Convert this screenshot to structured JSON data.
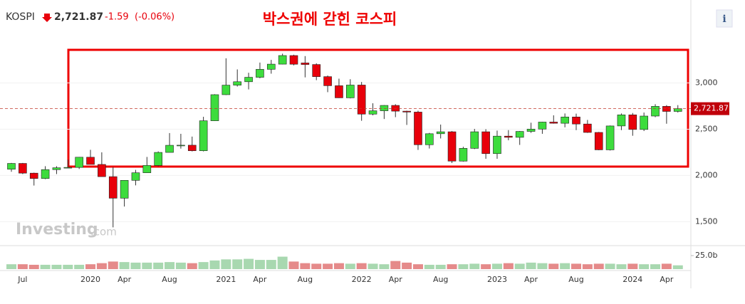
{
  "header": {
    "symbol": "KOSPI",
    "change": "-1.59",
    "change_pct": "(-0.06%)",
    "info_button": "i"
  },
  "chart_data": {
    "type": "candlestick",
    "title": "박스권에 갇힌 코스피",
    "categories": [
      null,
      "Jul",
      null,
      null,
      null,
      null,
      null,
      "2020",
      null,
      null,
      "Apr",
      null,
      null,
      null,
      "Aug",
      null,
      null,
      null,
      null,
      "2021",
      null,
      null,
      "Apr",
      null,
      null,
      null,
      "Aug",
      null,
      null,
      null,
      null,
      "2022",
      null,
      null,
      "Apr",
      null,
      null,
      null,
      "Aug",
      null,
      null,
      null,
      null,
      "2023",
      null,
      null,
      "Apr",
      null,
      null,
      null,
      "Aug",
      null,
      null,
      null,
      null,
      "2024",
      null,
      null,
      "Apr",
      null
    ],
    "open": [
      2067,
      2130,
      2025,
      1967,
      2063,
      2083,
      2087,
      2197,
      2119,
      1987,
      1754,
      1947,
      2029,
      2108,
      2249,
      2326,
      2327,
      2267,
      2591,
      2873,
      2976,
      3013,
      3061,
      3147,
      3203,
      3296,
      3216,
      3199,
      3068,
      2970,
      2839,
      2977,
      2663,
      2699,
      2757,
      2695,
      2685,
      2332,
      2451,
      2472,
      2155,
      2293,
      2472,
      2236,
      2425,
      2412,
      2476,
      2501,
      2577,
      2564,
      2632,
      2556,
      2465,
      2277,
      2535,
      2655,
      2497,
      2642,
      2747,
      2692
    ],
    "high": [
      2135,
      2135,
      2030,
      2100,
      2100,
      2170,
      2200,
      2277,
      2250,
      2090,
      1947,
      2060,
      2200,
      2260,
      2458,
      2450,
      2420,
      2634,
      2878,
      3266,
      3146,
      3110,
      3220,
      3249,
      3316,
      3305,
      3290,
      3212,
      3080,
      3046,
      3040,
      3010,
      2780,
      2760,
      2770,
      2700,
      2700,
      2460,
      2550,
      2480,
      2310,
      2503,
      2500,
      2485,
      2490,
      2480,
      2570,
      2580,
      2650,
      2670,
      2668,
      2600,
      2470,
      2540,
      2670,
      2675,
      2680,
      2770,
      2760,
      2760
    ],
    "low": [
      2040,
      2015,
      1891,
      1960,
      2015,
      2080,
      2070,
      2140,
      1987,
      1439,
      1664,
      1893,
      2030,
      2100,
      2250,
      2290,
      2260,
      2260,
      2590,
      2869,
      2961,
      2930,
      3050,
      3100,
      3200,
      3190,
      3060,
      3030,
      2900,
      2837,
      2833,
      2591,
      2650,
      2610,
      2630,
      2546,
      2276,
      2291,
      2400,
      2134,
      2150,
      2285,
      2180,
      2180,
      2380,
      2330,
      2460,
      2450,
      2560,
      2520,
      2490,
      2460,
      2273,
      2270,
      2490,
      2429,
      2480,
      2630,
      2559,
      2680
    ],
    "close": [
      2130,
      2025,
      1967,
      2063,
      2083,
      2087,
      2197,
      2119,
      1987,
      1754,
      1947,
      2029,
      2108,
      2249,
      2326,
      2327,
      2267,
      2591,
      2873,
      2976,
      3013,
      3061,
      3147,
      3203,
      3296,
      3202,
      3199,
      3068,
      2970,
      2839,
      2977,
      2663,
      2699,
      2757,
      2695,
      2685,
      2332,
      2451,
      2472,
      2155,
      2293,
      2472,
      2236,
      2425,
      2412,
      2476,
      2501,
      2577,
      2564,
      2632,
      2556,
      2465,
      2277,
      2535,
      2655,
      2497,
      2642,
      2747,
      2692,
      2722
    ],
    "up_color": "#3ddc3d",
    "down_color": "#e8000b",
    "ylim": [
      1280,
      3550
    ],
    "yticks": [
      {
        "value": 1500,
        "label": "1,500"
      },
      {
        "value": 2000,
        "label": "2,000"
      },
      {
        "value": 2500,
        "label": "2,500"
      },
      {
        "value": 3000,
        "label": "3,000"
      }
    ],
    "grid": true,
    "last_price": {
      "value": 2721.87,
      "label": "2,721.87"
    },
    "volume": {
      "values": [
        9,
        9,
        8,
        8,
        8,
        8,
        8,
        9,
        11,
        14,
        13,
        12,
        12,
        12,
        13,
        12,
        11,
        13,
        16,
        18,
        18,
        19,
        17,
        17,
        23,
        14,
        11,
        10,
        10,
        11,
        10,
        11,
        10,
        9,
        15,
        12,
        9,
        8,
        8,
        9,
        9,
        10,
        9,
        10,
        11,
        10,
        12,
        11,
        10,
        11,
        10,
        9,
        10,
        10,
        9,
        10,
        9,
        9,
        10,
        7
      ],
      "ylim": [
        0,
        30
      ],
      "yticks": [
        {
          "value": 25,
          "label": "25.0b"
        }
      ],
      "up_color": "#a8d8b0",
      "down_color": "#e58a8a"
    },
    "watermark": "Investing",
    "watermark_suffix": ".com"
  }
}
